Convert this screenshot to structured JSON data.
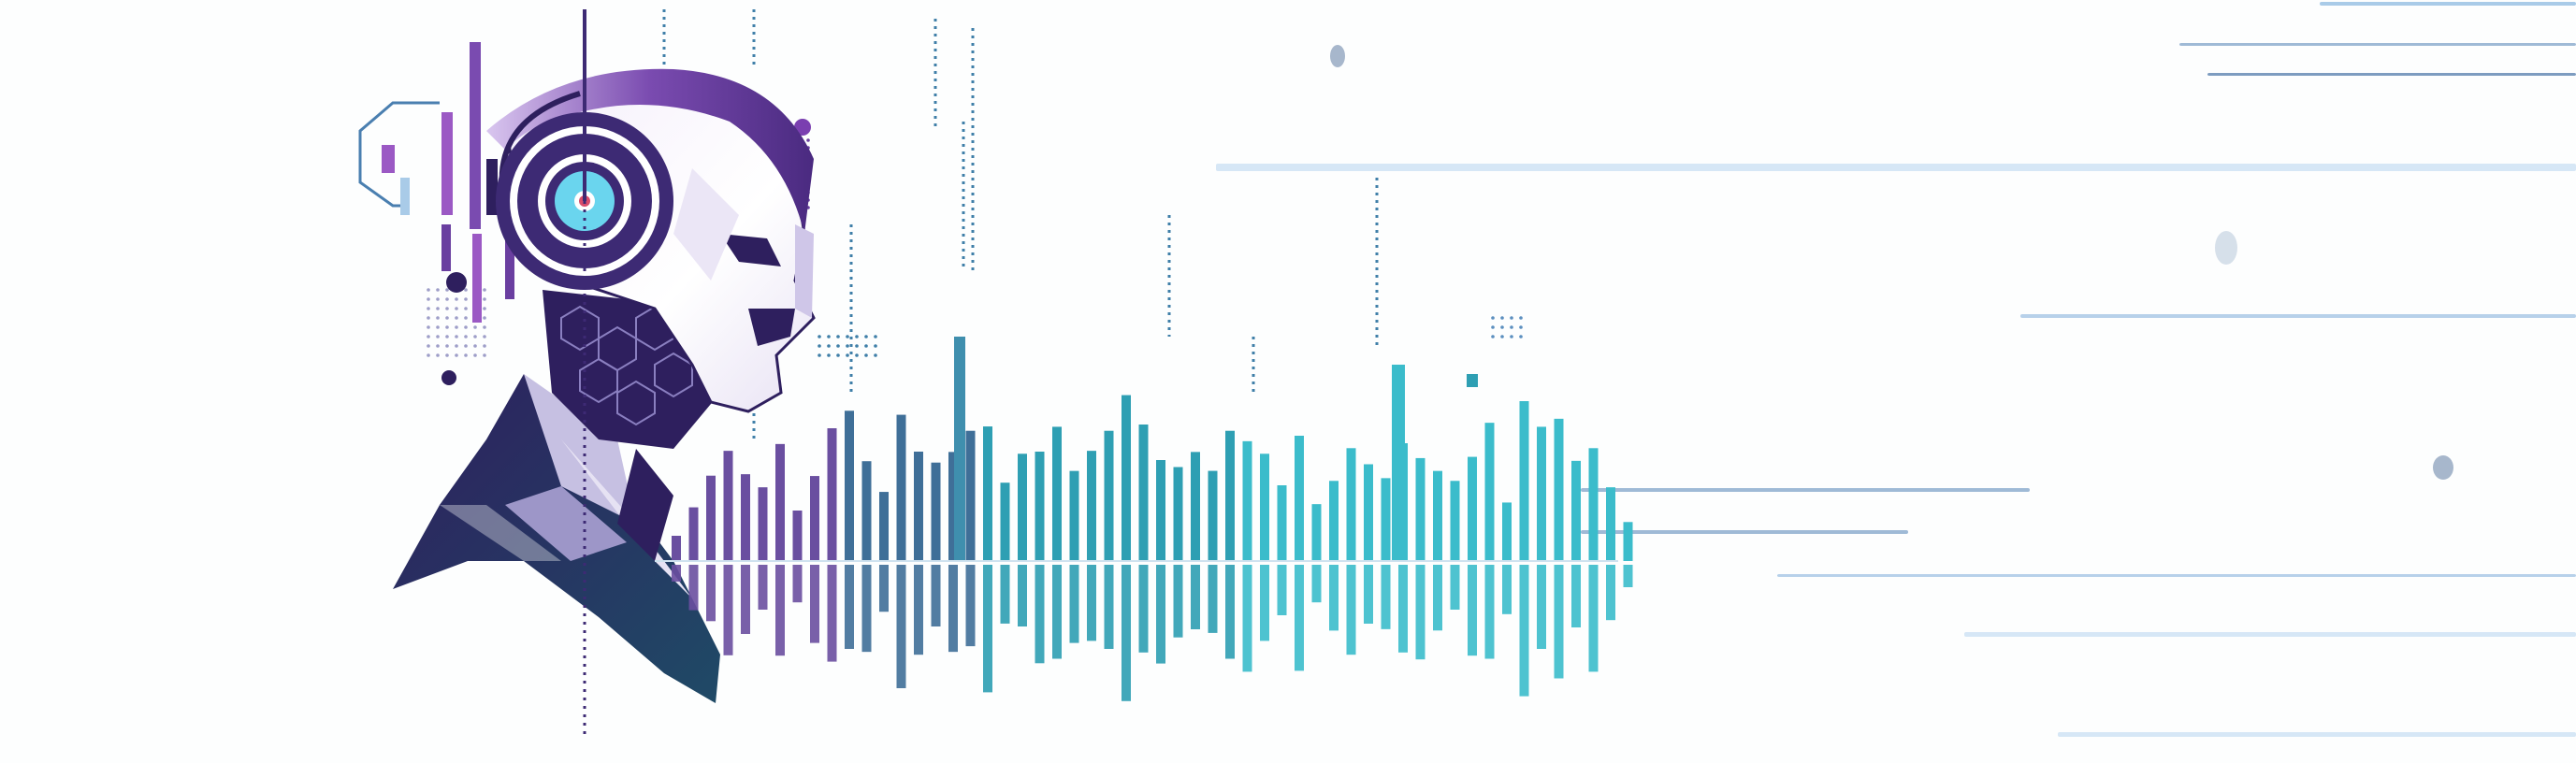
{
  "illustration": {
    "subject": "robot-head-with-headphones",
    "elements": [
      "robot-head-icon",
      "headphones-icon",
      "sound-wave-icon",
      "circuit-icon"
    ],
    "colors": {
      "background": "#fdfefe",
      "deep_purple": "#2e1f5e",
      "purple": "#6a3fa0",
      "violet": "#9b59c4",
      "lavender": "#d9c6ef",
      "navy": "#1f3a5a",
      "teal": "#2ea7b8",
      "cyan": "#5ed3e6",
      "light_blue": "#a9cbe8",
      "pale_blue": "#d6e7f6"
    }
  }
}
